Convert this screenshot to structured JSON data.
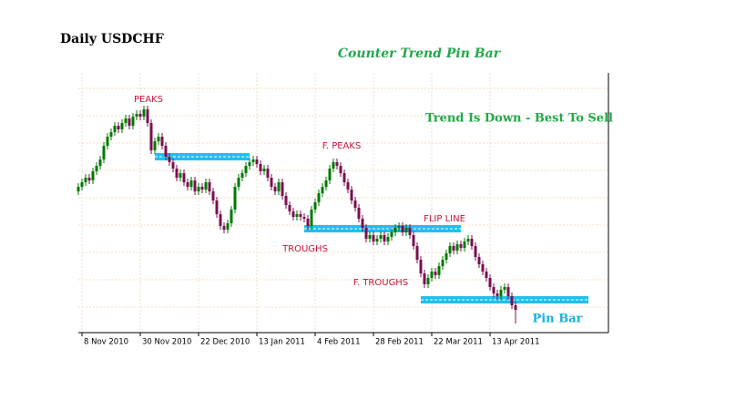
{
  "chart_data": {
    "type": "candlestick",
    "title": "Daily USDCHF",
    "subtitle": "Counter Trend Pin Bar",
    "annotations": [
      "Trend Is Down - Best To Sell",
      "PEAKS",
      "F. PEAKS",
      "TROUGHS",
      "FLIP LINE",
      "F. TROUGHS",
      "Pin Bar"
    ],
    "up_color": "#007a00",
    "down_color": "#7a1050",
    "level_color": "#1ec0ee",
    "grid": true,
    "ylim": [
      0.8855,
      1.033
    ],
    "xlim": [
      0,
      145
    ],
    "xticks": [
      {
        "value": 1,
        "label": "8 Nov 2010"
      },
      {
        "value": 17,
        "label": "30 Nov 2010"
      },
      {
        "value": 33,
        "label": "22 Dec 2010"
      },
      {
        "value": 49,
        "label": "13 Jan 2011"
      },
      {
        "value": 65,
        "label": "4 Feb 2011"
      },
      {
        "value": 81,
        "label": "28 Feb 2011"
      },
      {
        "value": 97,
        "label": "22 Mar 2011"
      },
      {
        "value": 113,
        "label": "13 Apr 2011"
      }
    ],
    "levels": [
      {
        "value": 0.982,
        "from": 21,
        "to": 47
      },
      {
        "value": 0.9425,
        "from": 62,
        "to": 105
      },
      {
        "value": 0.9035,
        "from": 94,
        "to": 140
      }
    ],
    "open": [
      0.963,
      0.9655,
      0.968,
      0.9705,
      0.969,
      0.974,
      0.977,
      0.9805,
      0.988,
      0.993,
      0.9955,
      0.999,
      0.997,
      1.0005,
      1.003,
      0.999,
      1.004,
      1.0055,
      1.004,
      1.008,
      1.0005,
      0.9855,
      0.9905,
      0.993,
      0.988,
      0.982,
      0.979,
      0.9755,
      0.9705,
      0.973,
      0.968,
      0.9655,
      0.969,
      0.963,
      0.9655,
      0.964,
      0.968,
      0.963,
      0.958,
      0.9505,
      0.944,
      0.942,
      0.9455,
      0.953,
      0.9655,
      0.9705,
      0.973,
      0.977,
      0.979,
      0.9805,
      0.978,
      0.974,
      0.9755,
      0.9705,
      0.9655,
      0.963,
      0.968,
      0.9605,
      0.9555,
      0.952,
      0.949,
      0.9505,
      0.949,
      0.948,
      0.944,
      0.953,
      0.957,
      0.962,
      0.9655,
      0.969,
      0.9755,
      0.979,
      0.977,
      0.973,
      0.968,
      0.964,
      0.958,
      0.954,
      0.948,
      0.943,
      0.937,
      0.939,
      0.9355,
      0.937,
      0.939,
      0.9355,
      0.938,
      0.9405,
      0.943,
      0.944,
      0.9405,
      0.943,
      0.939,
      0.933,
      0.9255,
      0.918,
      0.912,
      0.9155,
      0.919,
      0.917,
      0.922,
      0.9255,
      0.929,
      0.933,
      0.9305,
      0.934,
      0.932,
      0.9355,
      0.937,
      0.933,
      0.927,
      0.923,
      0.919,
      0.9155,
      0.9105,
      0.907,
      0.9055,
      0.909,
      0.9105,
      0.9055,
      0.9005
    ],
    "high": [
      0.9675,
      0.97,
      0.9725,
      0.9725,
      0.976,
      0.979,
      0.9825,
      0.99,
      0.995,
      0.9975,
      1.001,
      1.001,
      1.0025,
      1.005,
      1.005,
      1.006,
      1.0075,
      1.0075,
      1.01,
      1.01,
      1.0025,
      0.9925,
      0.995,
      0.995,
      0.99,
      0.984,
      0.981,
      0.9775,
      0.975,
      0.975,
      0.97,
      0.971,
      0.971,
      0.9675,
      0.9675,
      0.97,
      0.97,
      0.965,
      0.96,
      0.9525,
      0.946,
      0.9475,
      0.955,
      0.9675,
      0.9725,
      0.975,
      0.979,
      0.981,
      0.9825,
      0.9825,
      0.98,
      0.9775,
      0.9775,
      0.9725,
      0.9675,
      0.97,
      0.97,
      0.9625,
      0.9575,
      0.954,
      0.9525,
      0.9525,
      0.951,
      0.95,
      0.955,
      0.959,
      0.964,
      0.9675,
      0.971,
      0.9775,
      0.981,
      0.981,
      0.979,
      0.975,
      0.97,
      0.966,
      0.96,
      0.956,
      0.95,
      0.945,
      0.941,
      0.941,
      0.939,
      0.941,
      0.941,
      0.94,
      0.9425,
      0.945,
      0.946,
      0.946,
      0.945,
      0.945,
      0.941,
      0.935,
      0.9275,
      0.92,
      0.9175,
      0.921,
      0.921,
      0.924,
      0.9275,
      0.931,
      0.935,
      0.935,
      0.936,
      0.936,
      0.9375,
      0.939,
      0.939,
      0.935,
      0.929,
      0.925,
      0.921,
      0.9175,
      0.9125,
      0.909,
      0.911,
      0.9125,
      0.9125,
      0.9075,
      0.9025
    ],
    "low": [
      0.961,
      0.9635,
      0.966,
      0.967,
      0.967,
      0.972,
      0.975,
      0.9785,
      0.986,
      0.991,
      0.9935,
      0.995,
      0.995,
      0.9985,
      0.997,
      0.997,
      1.002,
      1.002,
      1.002,
      0.9985,
      0.9835,
      0.9835,
      0.9885,
      0.986,
      0.98,
      0.977,
      0.9735,
      0.9685,
      0.9685,
      0.966,
      0.9635,
      0.9635,
      0.961,
      0.961,
      0.962,
      0.962,
      0.961,
      0.956,
      0.9485,
      0.942,
      0.94,
      0.94,
      0.9435,
      0.951,
      0.9635,
      0.9685,
      0.971,
      0.975,
      0.977,
      0.976,
      0.972,
      0.972,
      0.9685,
      0.9635,
      0.961,
      0.961,
      0.9585,
      0.9535,
      0.95,
      0.947,
      0.947,
      0.947,
      0.946,
      0.942,
      0.942,
      0.951,
      0.955,
      0.96,
      0.9635,
      0.967,
      0.9735,
      0.975,
      0.971,
      0.966,
      0.962,
      0.956,
      0.952,
      0.946,
      0.941,
      0.935,
      0.935,
      0.9335,
      0.9335,
      0.935,
      0.9335,
      0.9335,
      0.936,
      0.9385,
      0.941,
      0.9385,
      0.9385,
      0.937,
      0.931,
      0.9235,
      0.916,
      0.91,
      0.91,
      0.9135,
      0.915,
      0.915,
      0.92,
      0.9235,
      0.927,
      0.9285,
      0.9285,
      0.93,
      0.93,
      0.9335,
      0.931,
      0.925,
      0.921,
      0.917,
      0.9135,
      0.9085,
      0.905,
      0.9035,
      0.9035,
      0.907,
      0.9035,
      0.8985,
      0.8905
    ],
    "close": [
      0.9655,
      0.968,
      0.9705,
      0.969,
      0.974,
      0.977,
      0.9805,
      0.988,
      0.993,
      0.9955,
      0.999,
      0.997,
      1.0005,
      1.003,
      0.999,
      1.004,
      1.0055,
      1.004,
      1.008,
      1.0005,
      0.9855,
      0.9905,
      0.993,
      0.988,
      0.982,
      0.979,
      0.9755,
      0.9705,
      0.973,
      0.968,
      0.9655,
      0.969,
      0.963,
      0.9655,
      0.964,
      0.968,
      0.963,
      0.958,
      0.9505,
      0.944,
      0.942,
      0.9455,
      0.953,
      0.9655,
      0.9705,
      0.973,
      0.977,
      0.979,
      0.9805,
      0.978,
      0.974,
      0.9755,
      0.9705,
      0.9655,
      0.963,
      0.968,
      0.9605,
      0.9555,
      0.952,
      0.949,
      0.9505,
      0.949,
      0.948,
      0.944,
      0.953,
      0.957,
      0.962,
      0.9655,
      0.969,
      0.9755,
      0.979,
      0.977,
      0.973,
      0.968,
      0.964,
      0.958,
      0.954,
      0.948,
      0.943,
      0.937,
      0.939,
      0.9355,
      0.937,
      0.939,
      0.9355,
      0.938,
      0.9405,
      0.943,
      0.944,
      0.9405,
      0.943,
      0.939,
      0.933,
      0.9255,
      0.918,
      0.912,
      0.9155,
      0.919,
      0.917,
      0.922,
      0.9255,
      0.929,
      0.933,
      0.9305,
      0.934,
      0.932,
      0.9355,
      0.937,
      0.933,
      0.927,
      0.923,
      0.919,
      0.9155,
      0.9105,
      0.907,
      0.9055,
      0.909,
      0.9105,
      0.9055,
      0.9005,
      0.898
    ]
  }
}
